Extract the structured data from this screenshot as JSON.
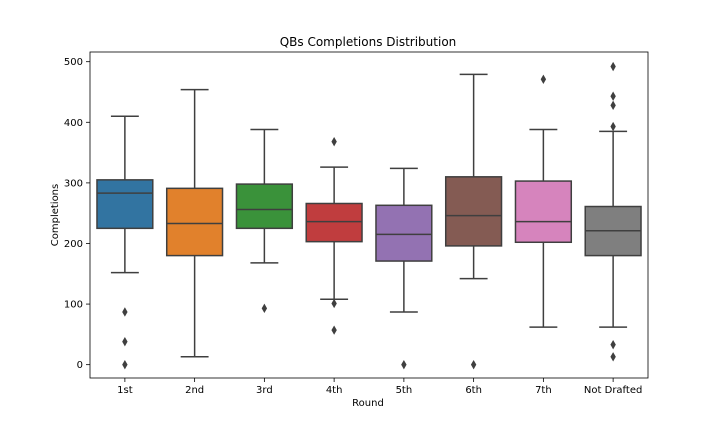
{
  "chart_data": {
    "type": "box",
    "title": "QBs Completions Distribution",
    "xlabel": "Round",
    "ylabel": "Completions",
    "ylim": [
      -22,
      516
    ],
    "yticks": [
      0,
      100,
      200,
      300,
      400,
      500
    ],
    "grid": false,
    "categories": [
      "1st",
      "2nd",
      "3rd",
      "4th",
      "5th",
      "6th",
      "7th",
      "Not Drafted"
    ],
    "boxes": [
      {
        "category": "1st",
        "color": "#3274a1",
        "whisker_low": 152,
        "q1": 225,
        "median": 283,
        "q3": 305,
        "whisker_high": 410,
        "outliers": [
          87,
          38,
          0
        ]
      },
      {
        "category": "2nd",
        "color": "#e1812c",
        "whisker_low": 13,
        "q1": 180,
        "median": 233,
        "q3": 291,
        "whisker_high": 454,
        "outliers": []
      },
      {
        "category": "3rd",
        "color": "#3a923a",
        "whisker_low": 168,
        "q1": 225,
        "median": 256,
        "q3": 298,
        "whisker_high": 388,
        "outliers": [
          93
        ]
      },
      {
        "category": "4th",
        "color": "#c03d3e",
        "whisker_low": 108,
        "q1": 203,
        "median": 236,
        "q3": 266,
        "whisker_high": 326,
        "outliers": [
          368,
          101,
          57
        ]
      },
      {
        "category": "5th",
        "color": "#9372b2",
        "whisker_low": 87,
        "q1": 171,
        "median": 215,
        "q3": 263,
        "whisker_high": 324,
        "outliers": [
          0
        ]
      },
      {
        "category": "6th",
        "color": "#845b53",
        "whisker_low": 142,
        "q1": 196,
        "median": 246,
        "q3": 310,
        "whisker_high": 479,
        "outliers": [
          0
        ]
      },
      {
        "category": "7th",
        "color": "#d684bd",
        "whisker_low": 62,
        "q1": 202,
        "median": 236,
        "q3": 303,
        "whisker_high": 388,
        "outliers": [
          471
        ]
      },
      {
        "category": "Not Drafted",
        "color": "#7f7f7f",
        "whisker_low": 62,
        "q1": 180,
        "median": 221,
        "q3": 261,
        "whisker_high": 385,
        "outliers": [
          492,
          443,
          428,
          393,
          33,
          13
        ]
      }
    ]
  }
}
